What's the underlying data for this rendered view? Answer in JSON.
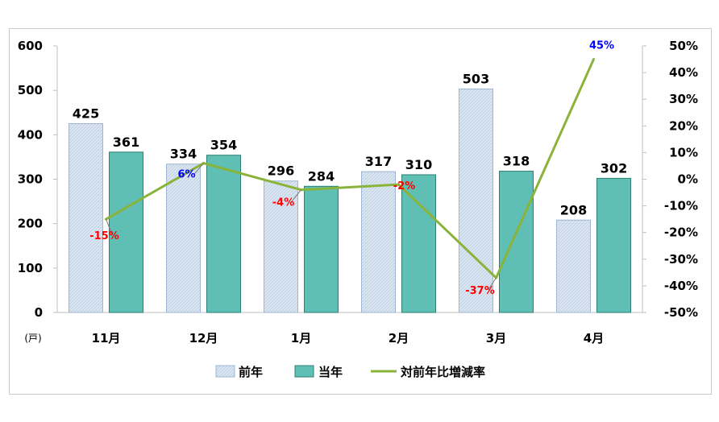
{
  "chart_data": {
    "type": "bar",
    "categories": [
      "11月",
      "12月",
      "1月",
      "2月",
      "3月",
      "4月"
    ],
    "series": [
      {
        "name": "前年",
        "kind": "bar",
        "axis": "left",
        "values": [
          425,
          334,
          296,
          317,
          503,
          208
        ]
      },
      {
        "name": "当年",
        "kind": "bar",
        "axis": "left",
        "values": [
          361,
          354,
          284,
          310,
          318,
          302
        ]
      },
      {
        "name": "対前年比増減率",
        "kind": "line",
        "axis": "right",
        "values": [
          -15,
          6,
          -4,
          -2,
          -37,
          45
        ]
      }
    ],
    "value_labels": {
      "前年": [
        "425",
        "334",
        "296",
        "317",
        "503",
        "208"
      ],
      "当年": [
        "361",
        "354",
        "284",
        "310",
        "318",
        "302"
      ],
      "対前年比増減率": [
        "-15%",
        "6%",
        "-4%",
        "-2%",
        "-37%",
        "45%"
      ]
    },
    "y_left": {
      "unit_label": "(戸)",
      "ylim": [
        0,
        600
      ],
      "ticks": [
        "0",
        "100",
        "200",
        "300",
        "400",
        "500",
        "600"
      ]
    },
    "y_right": {
      "ylim": [
        -50,
        50
      ],
      "ticks": [
        "-50%",
        "-40%",
        "-30%",
        "-20%",
        "-10%",
        "0%",
        "10%",
        "20%",
        "30%",
        "40%",
        "50%"
      ]
    },
    "grid": false,
    "legend": "bottom",
    "colors": {
      "prev_fill": "#dce6f2",
      "prev_stroke": "#9fb6d3",
      "curr_fill": "#5fbfb4",
      "curr_stroke": "#2e7f74",
      "line": "#8ab33b",
      "pct_positive": "#0000ff",
      "pct_negative": "#ff0000"
    }
  }
}
